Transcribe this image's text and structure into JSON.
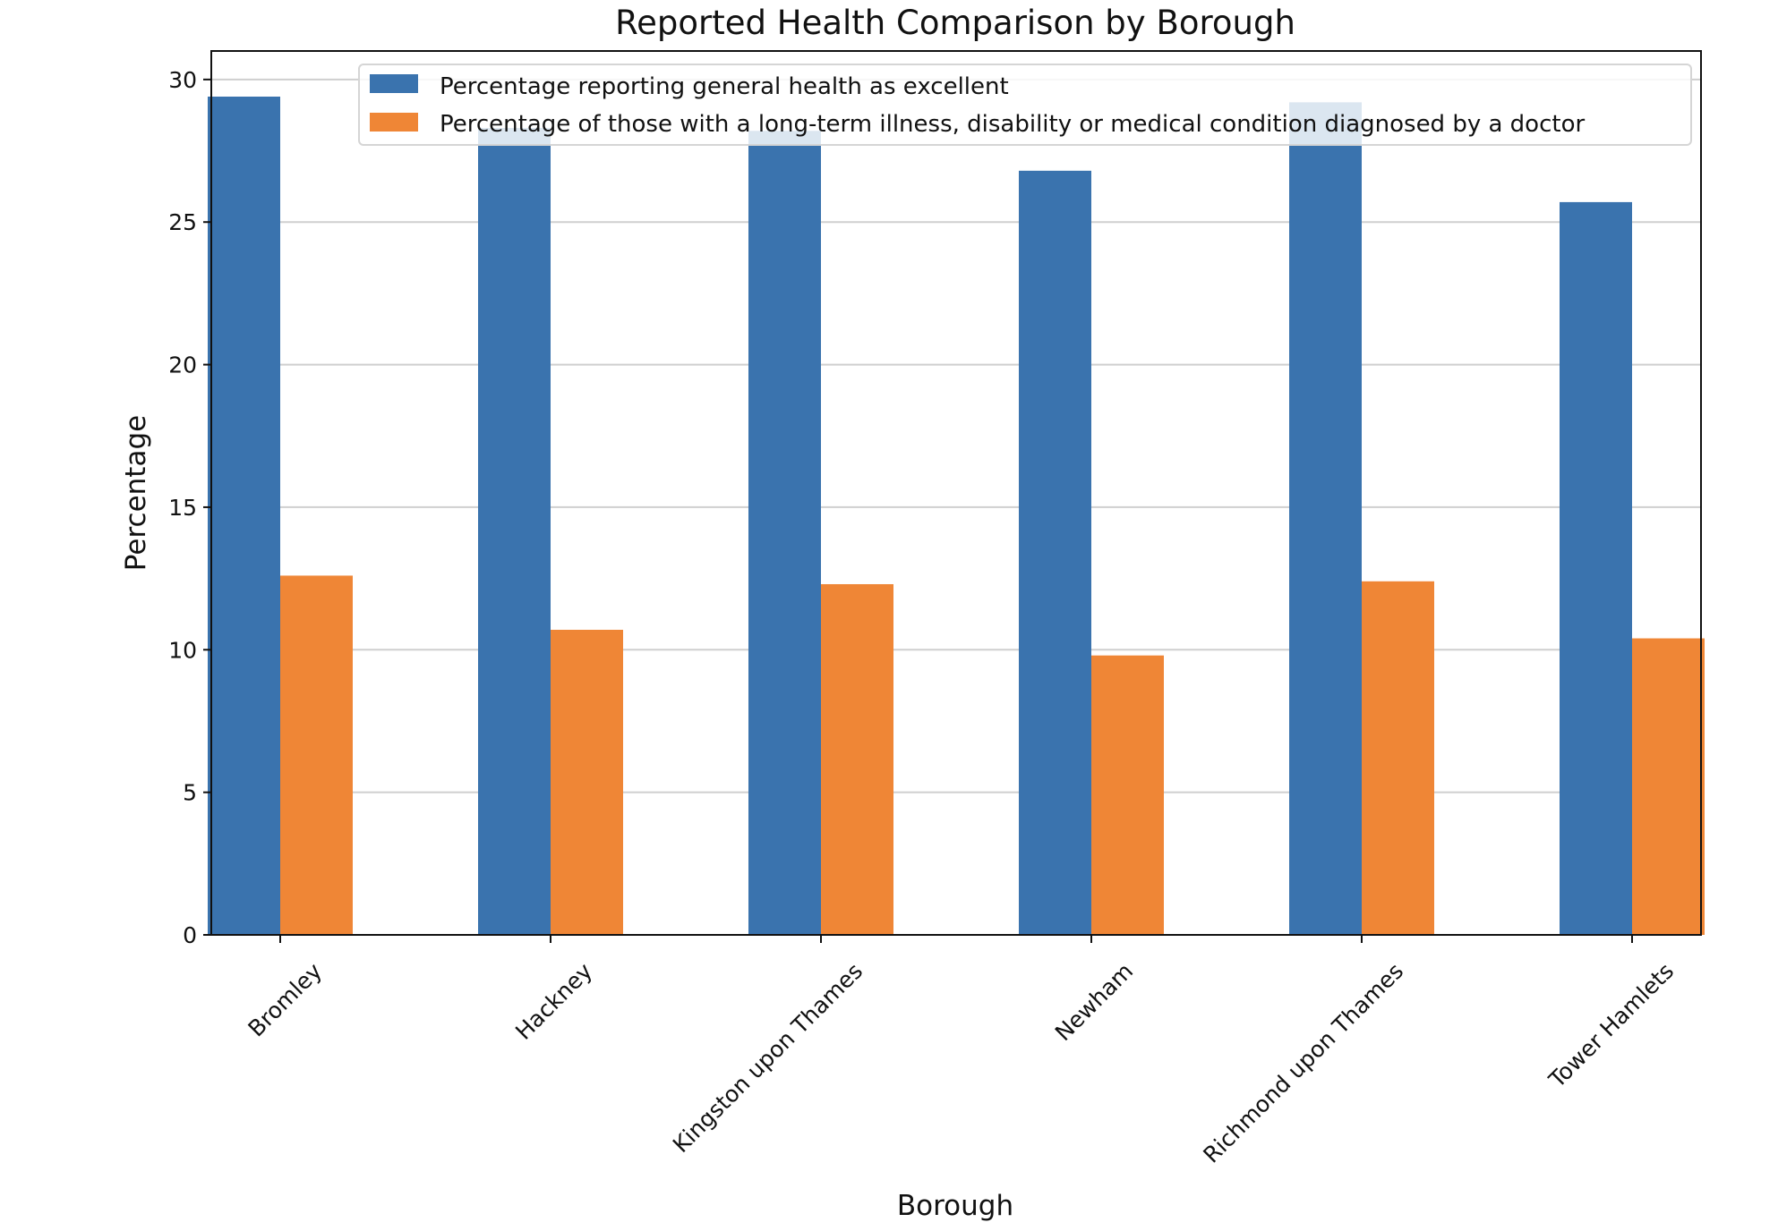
{
  "chart_data": {
    "type": "bar",
    "title": "Reported Health Comparison by Borough",
    "xlabel": "Borough",
    "ylabel": "Percentage",
    "categories": [
      "Bromley",
      "Hackney",
      "Kingston upon Thames",
      "Newham",
      "Richmond upon Thames",
      "Tower Hamlets"
    ],
    "series": [
      {
        "name": "Percentage reporting general health as excellent",
        "color": "#3a73ae",
        "values": [
          29.4,
          28.3,
          28.2,
          26.8,
          29.2,
          25.7
        ]
      },
      {
        "name": "Percentage of those with a long-term illness, disability or medical condition diagnosed by a doctor",
        "color": "#ef8636",
        "values": [
          12.6,
          10.7,
          12.3,
          9.8,
          12.4,
          10.4
        ]
      }
    ],
    "ylim": [
      0,
      31
    ],
    "yticks": [
      0,
      5,
      10,
      15,
      20,
      25,
      30
    ],
    "grid": "horizontal",
    "legend": "top-right"
  }
}
